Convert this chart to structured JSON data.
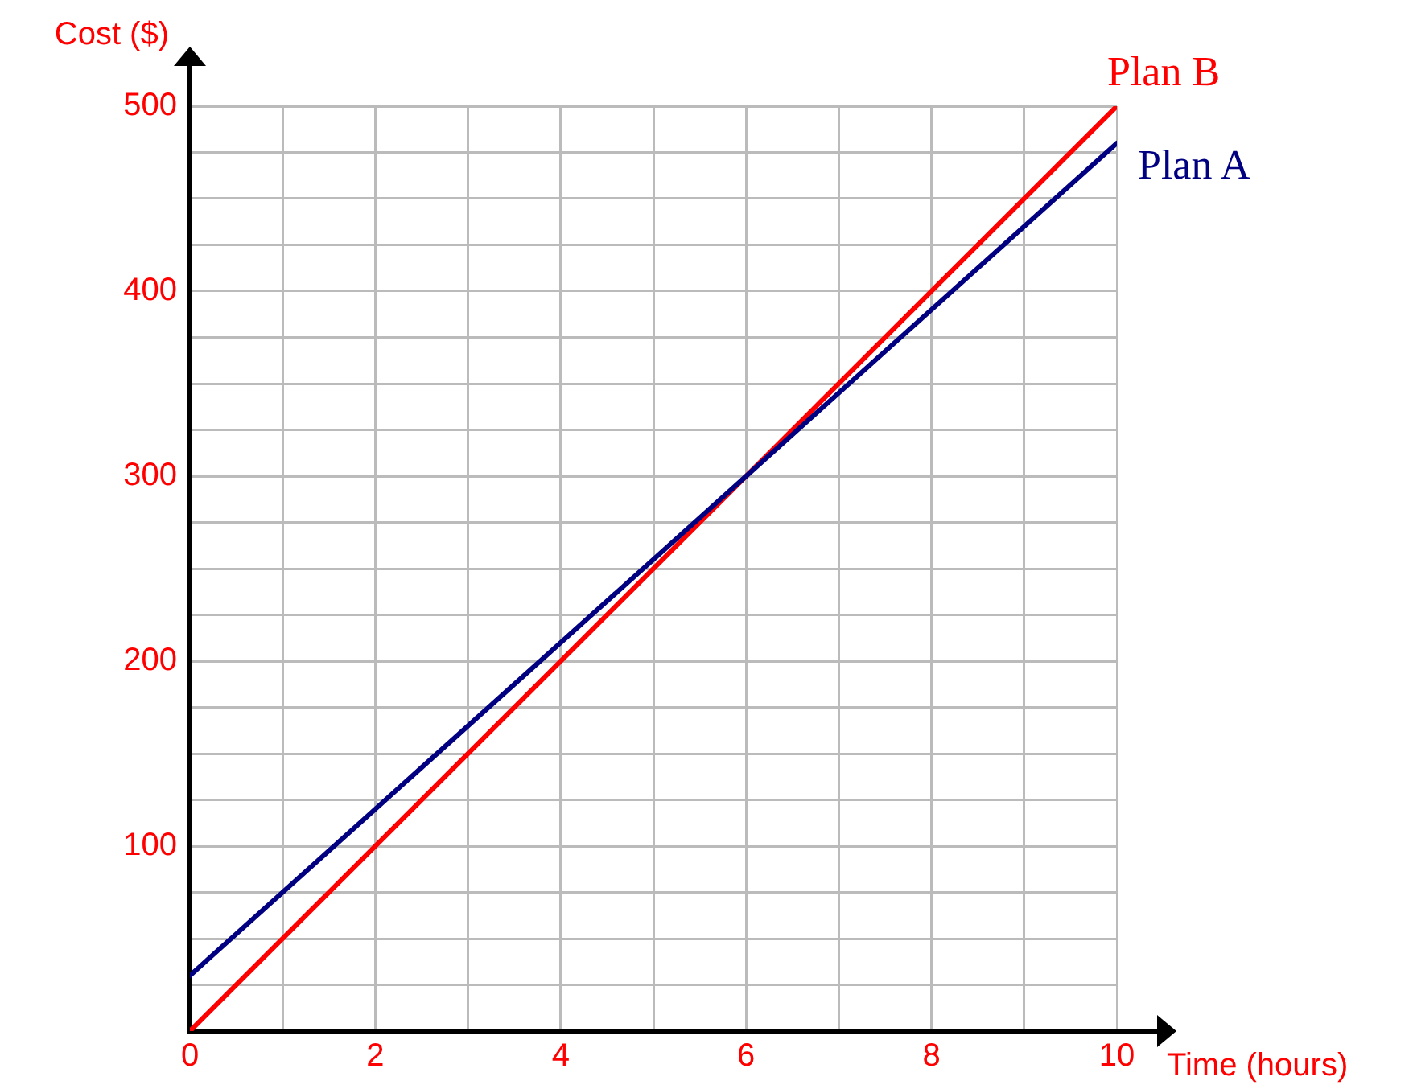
{
  "chart_data": {
    "type": "line",
    "xlabel": "Time (hours)",
    "ylabel": "Cost ($)",
    "x": [
      0,
      10
    ],
    "series": [
      {
        "name": "Plan A",
        "color": "#000080",
        "values": [
          30,
          480
        ]
      },
      {
        "name": "Plan B",
        "color": "#ff0000",
        "values": [
          0,
          500
        ]
      }
    ],
    "xlim": [
      0,
      10
    ],
    "ylim": [
      0,
      500
    ],
    "xticks": [
      0,
      {
        "value": 1,
        "label": null
      },
      2,
      {
        "value": 3,
        "label": null
      },
      4,
      {
        "value": 5,
        "label": null
      },
      6,
      {
        "value": 7,
        "label": null
      },
      8,
      {
        "value": 9,
        "label": null
      },
      10
    ],
    "yticks": [
      {
        "value": 0,
        "label": null
      },
      {
        "value": 25,
        "label": null
      },
      {
        "value": 50,
        "label": null
      },
      {
        "value": 75,
        "label": null
      },
      100,
      {
        "value": 125,
        "label": null
      },
      {
        "value": 150,
        "label": null
      },
      {
        "value": 175,
        "label": null
      },
      200,
      {
        "value": 225,
        "label": null
      },
      {
        "value": 250,
        "label": null
      },
      {
        "value": 275,
        "label": null
      },
      300,
      {
        "value": 325,
        "label": null
      },
      {
        "value": 350,
        "label": null
      },
      {
        "value": 375,
        "label": null
      },
      400,
      {
        "value": 425,
        "label": null
      },
      {
        "value": 450,
        "label": null
      },
      {
        "value": 475,
        "label": null
      },
      500
    ],
    "grid": true,
    "marker": "none",
    "line_style": "solid"
  }
}
